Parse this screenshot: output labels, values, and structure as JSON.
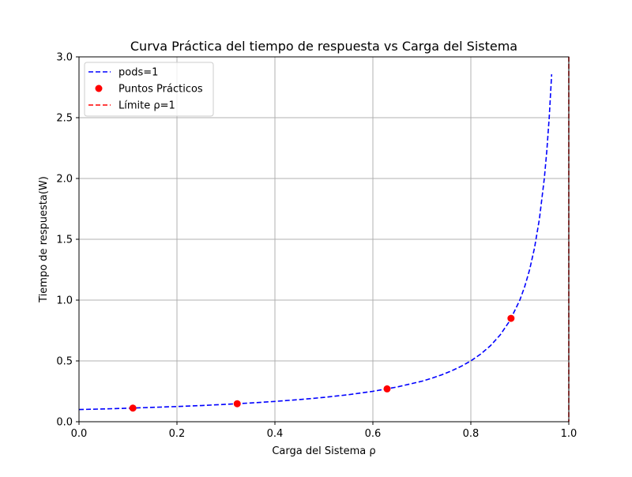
{
  "chart_data": {
    "type": "line",
    "title": "Curva Práctica del tiempo de respuesta vs Carga del Sistema",
    "xlabel": "Carga del Sistema ρ",
    "ylabel": "Tiempo de respuesta(W)",
    "xlim": [
      0.0,
      1.0
    ],
    "ylim": [
      0.0,
      3.0
    ],
    "x_ticks": [
      "0.0",
      "0.2",
      "0.4",
      "0.6",
      "0.8",
      "1.0"
    ],
    "y_ticks": [
      "0.0",
      "0.5",
      "1.0",
      "1.5",
      "2.0",
      "2.5",
      "3.0"
    ],
    "grid": true,
    "legend_position": "top-left",
    "series": [
      {
        "name": "pods=1",
        "kind": "line",
        "style": "dashed",
        "color": "#0000ff",
        "x": [
          0.0,
          0.05,
          0.1,
          0.15,
          0.2,
          0.25,
          0.3,
          0.35,
          0.4,
          0.45,
          0.5,
          0.55,
          0.6,
          0.65,
          0.7,
          0.72,
          0.74,
          0.76,
          0.78,
          0.8,
          0.82,
          0.84,
          0.86,
          0.88,
          0.9,
          0.91,
          0.92,
          0.93,
          0.94,
          0.95,
          0.955,
          0.96,
          0.965
        ],
        "y": [
          0.1,
          0.105,
          0.111,
          0.118,
          0.125,
          0.133,
          0.143,
          0.154,
          0.167,
          0.182,
          0.2,
          0.222,
          0.25,
          0.286,
          0.333,
          0.357,
          0.385,
          0.417,
          0.455,
          0.5,
          0.556,
          0.625,
          0.714,
          0.833,
          1.0,
          1.111,
          1.25,
          1.429,
          1.667,
          2.0,
          2.222,
          2.5,
          2.857
        ]
      },
      {
        "name": "Puntos Prácticos",
        "kind": "scatter",
        "color": "#ff0000",
        "x": [
          0.11,
          0.323,
          0.629,
          0.882
        ],
        "y": [
          0.112,
          0.148,
          0.27,
          0.85
        ]
      },
      {
        "name": "Límite ρ=1",
        "kind": "vline",
        "style": "dashed",
        "color": "#ff0000",
        "x": [
          1.0
        ]
      }
    ]
  }
}
